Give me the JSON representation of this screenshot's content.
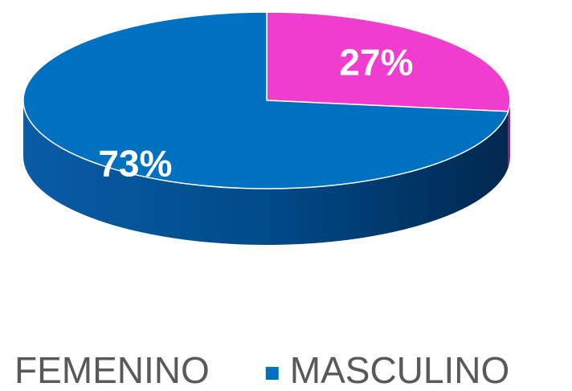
{
  "chart_data": {
    "type": "pie3d",
    "categories": [
      "FEMENINO",
      "MASCULINO"
    ],
    "values": [
      27,
      73
    ],
    "value_labels": [
      "27%",
      "73%"
    ],
    "colors": [
      "#f03ccf",
      "#0070c0"
    ]
  }
}
